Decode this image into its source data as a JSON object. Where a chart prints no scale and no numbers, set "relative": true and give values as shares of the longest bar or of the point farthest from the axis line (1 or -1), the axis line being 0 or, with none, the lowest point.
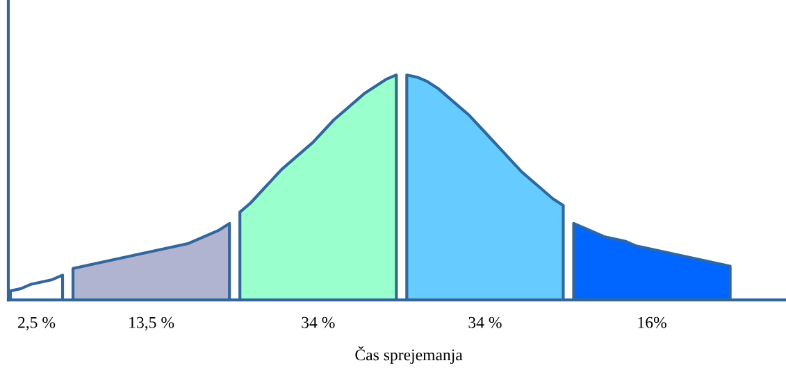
{
  "chart_data": {
    "type": "area",
    "relative": true,
    "xlabel": "Čas sprejemanja",
    "legend": false,
    "categories": [
      null,
      null,
      null,
      null,
      null,
      null,
      null,
      null,
      null,
      null,
      null,
      null,
      null,
      null,
      null,
      null,
      null,
      null,
      null,
      null,
      null,
      null,
      null,
      null,
      null,
      null,
      null,
      null,
      null,
      null,
      null,
      null,
      null,
      null,
      null,
      null,
      null,
      null,
      null,
      null,
      null,
      null,
      null,
      null,
      null,
      null,
      null,
      null,
      null,
      null,
      null,
      null,
      null,
      null,
      null,
      null,
      null,
      null,
      null,
      null,
      null,
      null,
      null,
      null,
      null,
      null,
      null,
      null,
      null,
      null
    ],
    "series": [
      {
        "name": "2,5 %",
        "color": "#ffffff",
        "values": [
          0.04,
          0.05,
          0.07,
          0.08,
          0.09,
          0.11,
          null,
          null,
          null,
          null,
          null,
          null,
          null,
          null,
          null,
          null,
          null,
          null,
          null,
          null,
          null,
          null,
          null,
          null,
          null,
          null,
          null,
          null,
          null,
          null,
          null,
          null,
          null,
          null,
          null,
          null,
          null,
          null,
          null,
          null,
          null,
          null,
          null,
          null,
          null,
          null,
          null,
          null,
          null,
          null,
          null,
          null,
          null,
          null,
          null,
          null,
          null,
          null,
          null,
          null,
          null,
          null,
          null,
          null,
          null,
          null,
          null,
          null,
          null,
          null
        ]
      },
      {
        "name": "13,5 %",
        "color": "#b0b4d0",
        "values": [
          null,
          null,
          null,
          null,
          null,
          null,
          0.14,
          0.15,
          0.16,
          0.17,
          0.18,
          0.19,
          0.2,
          0.21,
          0.22,
          0.23,
          0.24,
          0.25,
          0.27,
          0.29,
          0.31,
          0.34,
          null,
          null,
          null,
          null,
          null,
          null,
          null,
          null,
          null,
          null,
          null,
          null,
          null,
          null,
          null,
          null,
          null,
          null,
          null,
          null,
          null,
          null,
          null,
          null,
          null,
          null,
          null,
          null,
          null,
          null,
          null,
          null,
          null,
          null,
          null,
          null,
          null,
          null,
          null,
          null,
          null,
          null,
          null,
          null,
          null,
          null,
          null,
          null
        ]
      },
      {
        "name": "34 %",
        "color": "#99ffcc",
        "values": [
          null,
          null,
          null,
          null,
          null,
          null,
          null,
          null,
          null,
          null,
          null,
          null,
          null,
          null,
          null,
          null,
          null,
          null,
          null,
          null,
          null,
          null,
          0.39,
          0.43,
          0.48,
          0.53,
          0.58,
          0.62,
          0.66,
          0.7,
          0.75,
          0.8,
          0.84,
          0.88,
          0.92,
          0.95,
          0.98,
          1.0,
          null,
          null,
          null,
          null,
          null,
          null,
          null,
          null,
          null,
          null,
          null,
          null,
          null,
          null,
          null,
          null,
          null,
          null,
          null,
          null,
          null,
          null,
          null,
          null,
          null,
          null,
          null,
          null,
          null,
          null,
          null,
          null
        ]
      },
      {
        "name": "34 %",
        "color": "#66ccff",
        "values": [
          null,
          null,
          null,
          null,
          null,
          null,
          null,
          null,
          null,
          null,
          null,
          null,
          null,
          null,
          null,
          null,
          null,
          null,
          null,
          null,
          null,
          null,
          null,
          null,
          null,
          null,
          null,
          null,
          null,
          null,
          null,
          null,
          null,
          null,
          null,
          null,
          null,
          null,
          1.0,
          0.99,
          0.97,
          0.94,
          0.9,
          0.86,
          0.82,
          0.77,
          0.72,
          0.67,
          0.62,
          0.57,
          0.53,
          0.49,
          0.45,
          0.42,
          null,
          null,
          null,
          null,
          null,
          null,
          null,
          null,
          null,
          null,
          null,
          null,
          null,
          null,
          null,
          null
        ]
      },
      {
        "name": "16%",
        "color": "#0066ff",
        "values": [
          null,
          null,
          null,
          null,
          null,
          null,
          null,
          null,
          null,
          null,
          null,
          null,
          null,
          null,
          null,
          null,
          null,
          null,
          null,
          null,
          null,
          null,
          null,
          null,
          null,
          null,
          null,
          null,
          null,
          null,
          null,
          null,
          null,
          null,
          null,
          null,
          null,
          null,
          null,
          null,
          null,
          null,
          null,
          null,
          null,
          null,
          null,
          null,
          null,
          null,
          null,
          null,
          null,
          null,
          0.34,
          0.32,
          0.3,
          0.28,
          0.27,
          0.26,
          0.24,
          0.23,
          0.22,
          0.21,
          0.2,
          0.19,
          0.18,
          0.17,
          0.16,
          0.15
        ]
      }
    ]
  }
}
